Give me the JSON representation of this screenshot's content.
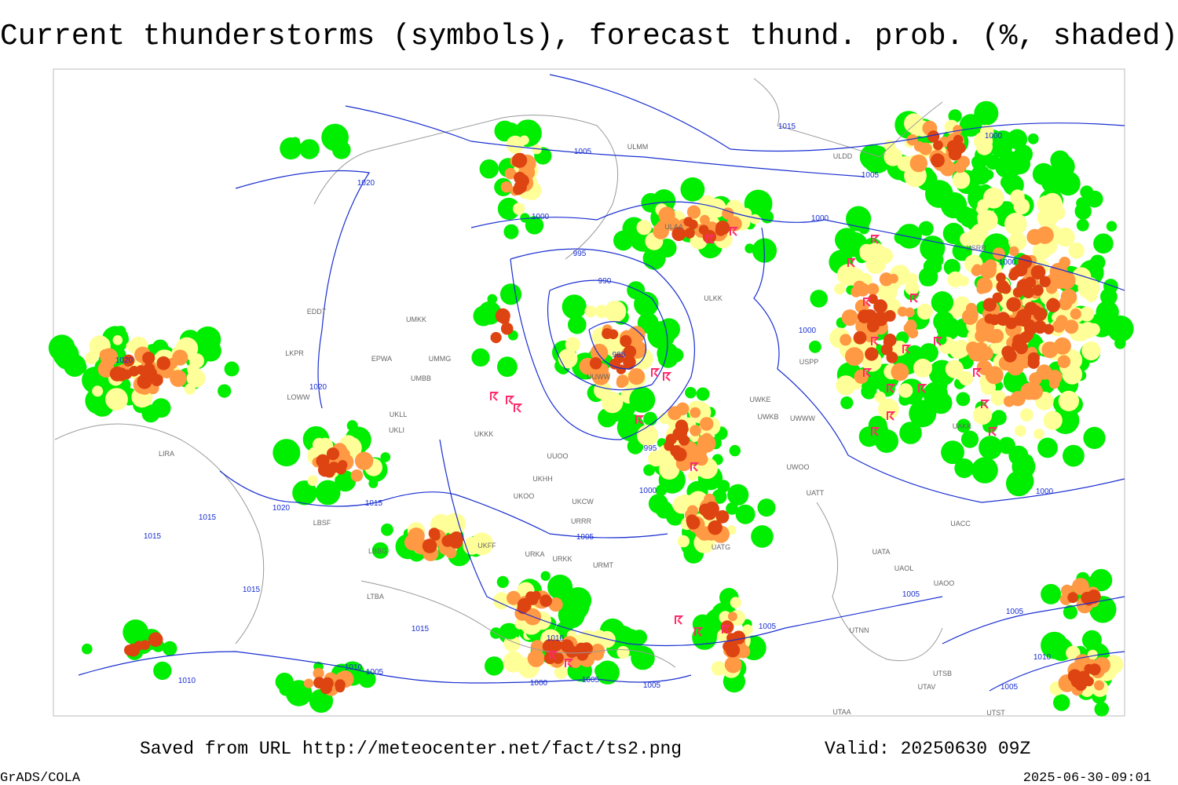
{
  "title": "Current thunderstorms (symbols), forecast thund. prob. (%, shaded)",
  "source": "Saved from URL http://meteocenter.net/fact/ts2.png",
  "valid": "Valid: 20250630 09Z",
  "credit": "GrADS/COLA",
  "timestamp": "2025-06-30-09:01",
  "isobar_labels": [
    "1015",
    "1005",
    "1020",
    "1000",
    "995",
    "990",
    "985",
    "1020",
    "1020",
    "995",
    "1000",
    "1015",
    "1020",
    "1015",
    "1015",
    "1005",
    "1015",
    "1015",
    "1010",
    "1010",
    "1005",
    "1010",
    "1000",
    "1005",
    "1005",
    "1005",
    "1000",
    "1000",
    "1005",
    "1000",
    "1000",
    "1000",
    "1005",
    "1005",
    "1010",
    "1005"
  ],
  "stations": [
    "ULMM",
    "ULDD",
    "ULAA",
    "ULKK",
    "EDDT",
    "UMKK",
    "EPWA",
    "UMMG",
    "UMBB",
    "LKPR",
    "LOWW",
    "UKLL",
    "UKLI",
    "UKKK",
    "LIRA",
    "UUOO",
    "UKHH",
    "UKOO",
    "UKCW",
    "URRR",
    "LBSF",
    "UKFF",
    "URKA",
    "URKK",
    "URMT",
    "LBBG",
    "LTBA",
    "UUWW",
    "UWKE",
    "UWKB",
    "UWWW",
    "UWOO",
    "UATT",
    "UATG",
    "UATA",
    "UAOL",
    "UAOO",
    "UTNN",
    "USPP",
    "UTSB",
    "UTAV",
    "UTAA",
    "UTST",
    "USRR",
    "UAKK",
    "UACC"
  ]
}
